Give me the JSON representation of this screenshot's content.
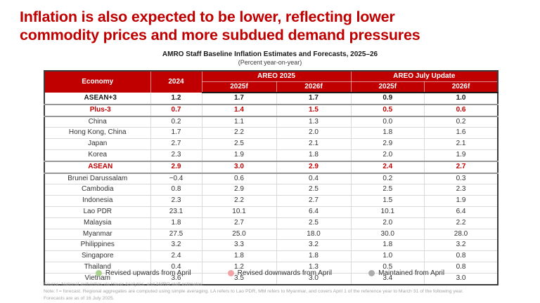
{
  "colors": {
    "accent": "#C00000",
    "status": {
      "up": "#CBE4BB",
      "down": "#F9C8C9",
      "same": "#D9D9D9"
    },
    "legend": {
      "up": "#A9D18E",
      "down": "#F2A2A4",
      "same": "#ACACAC"
    }
  },
  "title": {
    "line1": "Inflation is also expected to be lower, reflecting lower",
    "line2": "commodity prices and more subdued demand pressures"
  },
  "caption": {
    "title": "AMRO Staff Baseline Inflation Estimates and Forecasts, 2025–26",
    "subtitle": "(Percent year-on-year)"
  },
  "chart_data": {
    "type": "table",
    "header": {
      "economy": "Economy",
      "year2024": "2024",
      "group_areo2025": "AREO 2025",
      "group_july": "AREO July Update",
      "sub": [
        "2025f",
        "2026f",
        "2025f",
        "2026f"
      ]
    },
    "rows": [
      {
        "name": "ASEAN+3",
        "group": true,
        "emphasis": "black",
        "sep": true,
        "v2024": "1.2",
        "a2025": "1.7",
        "a2026": "1.7",
        "j2025": {
          "v": "0.9",
          "s": "down"
        },
        "j2026": {
          "v": "1.0",
          "s": "down"
        }
      },
      {
        "name": "Plus-3",
        "group": true,
        "emphasis": "red",
        "sep": true,
        "v2024": "0.7",
        "a2025": "1.4",
        "a2026": "1.5",
        "j2025": {
          "v": "0.5",
          "s": "down"
        },
        "j2026": {
          "v": "0.6",
          "s": "down"
        }
      },
      {
        "name": "China",
        "group": false,
        "emphasis": null,
        "sep": false,
        "v2024": "0.2",
        "a2025": "1.1",
        "a2026": "1.3",
        "j2025": {
          "v": "0.0",
          "s": "down"
        },
        "j2026": {
          "v": "0.2",
          "s": "down"
        }
      },
      {
        "name": "Hong Kong, China",
        "group": false,
        "emphasis": null,
        "sep": false,
        "v2024": "1.7",
        "a2025": "2.2",
        "a2026": "2.0",
        "j2025": {
          "v": "1.8",
          "s": "down"
        },
        "j2026": {
          "v": "1.6",
          "s": "down"
        }
      },
      {
        "name": "Japan",
        "group": false,
        "emphasis": null,
        "sep": false,
        "v2024": "2.7",
        "a2025": "2.5",
        "a2026": "2.1",
        "j2025": {
          "v": "2.9",
          "s": "up"
        },
        "j2026": {
          "v": "2.1",
          "s": "same"
        }
      },
      {
        "name": "Korea",
        "group": false,
        "emphasis": null,
        "sep": true,
        "v2024": "2.3",
        "a2025": "1.9",
        "a2026": "1.8",
        "j2025": {
          "v": "2.0",
          "s": "up"
        },
        "j2026": {
          "v": "1.9",
          "s": "up"
        }
      },
      {
        "name": "ASEAN",
        "group": true,
        "emphasis": "red",
        "sep": true,
        "v2024": "2.9",
        "a2025": "3.0",
        "a2026": "2.9",
        "j2025": {
          "v": "2.4",
          "s": "down"
        },
        "j2026": {
          "v": "2.7",
          "s": "down"
        }
      },
      {
        "name": "Brunei Darussalam",
        "group": false,
        "emphasis": null,
        "sep": false,
        "v2024": "−0.4",
        "a2025": "0.6",
        "a2026": "0.4",
        "j2025": {
          "v": "0.2",
          "s": "down"
        },
        "j2026": {
          "v": "0.3",
          "s": "down"
        }
      },
      {
        "name": "Cambodia",
        "group": false,
        "emphasis": null,
        "sep": false,
        "v2024": "0.8",
        "a2025": "2.9",
        "a2026": "2.5",
        "j2025": {
          "v": "2.5",
          "s": "down"
        },
        "j2026": {
          "v": "2.3",
          "s": "down"
        }
      },
      {
        "name": "Indonesia",
        "group": false,
        "emphasis": null,
        "sep": false,
        "v2024": "2.3",
        "a2025": "2.2",
        "a2026": "2.7",
        "j2025": {
          "v": "1.5",
          "s": "down"
        },
        "j2026": {
          "v": "1.9",
          "s": "down"
        }
      },
      {
        "name": "Lao PDR",
        "group": false,
        "emphasis": null,
        "sep": false,
        "v2024": "23.1",
        "a2025": "10.1",
        "a2026": "6.4",
        "j2025": {
          "v": "10.1",
          "s": "same"
        },
        "j2026": {
          "v": "6.4",
          "s": "same"
        }
      },
      {
        "name": "Malaysia",
        "group": false,
        "emphasis": null,
        "sep": false,
        "v2024": "1.8",
        "a2025": "2.7",
        "a2026": "2.5",
        "j2025": {
          "v": "2.0",
          "s": "down"
        },
        "j2026": {
          "v": "2.2",
          "s": "down"
        }
      },
      {
        "name": "Myanmar",
        "group": false,
        "emphasis": null,
        "sep": false,
        "v2024": "27.5",
        "a2025": "25.0",
        "a2026": "18.0",
        "j2025": {
          "v": "30.0",
          "s": "up"
        },
        "j2026": {
          "v": "28.0",
          "s": "up"
        }
      },
      {
        "name": "Philippines",
        "group": false,
        "emphasis": null,
        "sep": false,
        "v2024": "3.2",
        "a2025": "3.3",
        "a2026": "3.2",
        "j2025": {
          "v": "1.8",
          "s": "down"
        },
        "j2026": {
          "v": "3.2",
          "s": "same"
        }
      },
      {
        "name": "Singapore",
        "group": false,
        "emphasis": null,
        "sep": false,
        "v2024": "2.4",
        "a2025": "1.8",
        "a2026": "1.8",
        "j2025": {
          "v": "1.0",
          "s": "down"
        },
        "j2026": {
          "v": "0.8",
          "s": "down"
        }
      },
      {
        "name": "Thailand",
        "group": false,
        "emphasis": null,
        "sep": false,
        "v2024": "0.4",
        "a2025": "1.2",
        "a2026": "1.3",
        "j2025": {
          "v": "0.5",
          "s": "down"
        },
        "j2026": {
          "v": "0.8",
          "s": "down"
        }
      },
      {
        "name": "Vietnam",
        "group": false,
        "emphasis": null,
        "sep": false,
        "v2024": "3.6",
        "a2025": "3.5",
        "a2026": "3.0",
        "j2025": {
          "v": "3.4",
          "s": "down"
        },
        "j2026": {
          "v": "3.0",
          "s": "same"
        }
      }
    ]
  },
  "legend": {
    "items": [
      {
        "label": "Revised upwards from April",
        "status": "up"
      },
      {
        "label": "Revised downwards from April",
        "status": "down"
      },
      {
        "label": "Maintained from April",
        "status": "same"
      }
    ]
  },
  "footer": {
    "line1": "Source: National authorities via Haver Analytics, and AMRO staff estimates.",
    "line2": "Note: f = forecast. Regional aggregates are computed using simple averaging. LA refers to Lao PDR, MM refers to Myanmar, and covers April 1 of the reference year to March 31 of the following year.",
    "line3": "Forecasts are as of 16 July 2025."
  }
}
